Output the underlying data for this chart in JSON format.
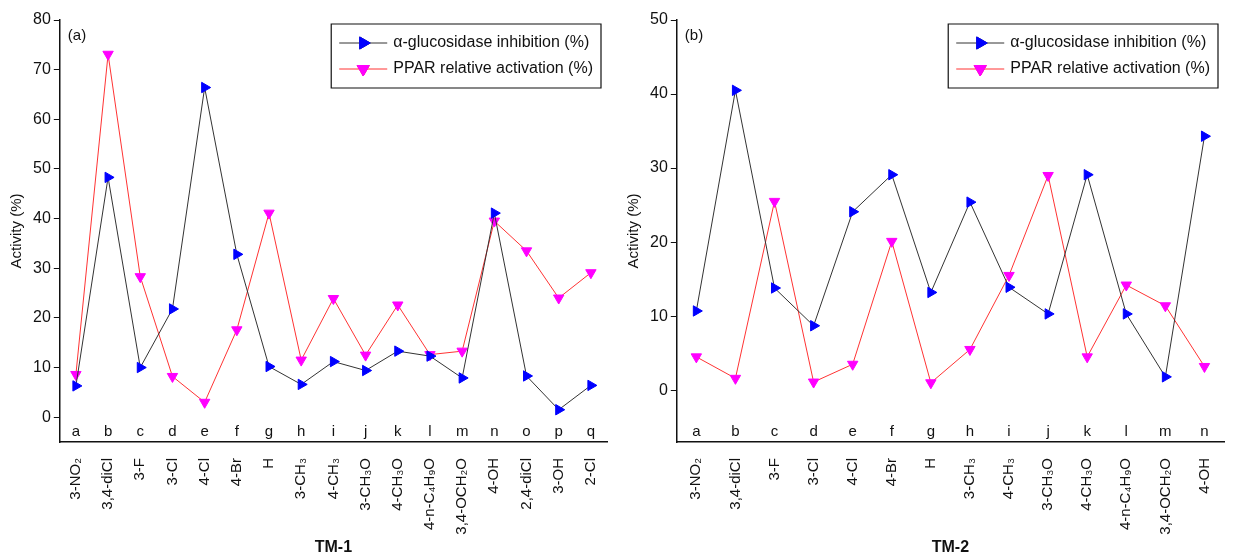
{
  "chart_data": [
    {
      "type": "line",
      "title": "(a)",
      "xlabel": "TM-1",
      "ylabel": "Activity (%)",
      "categories": [
        "3-NO₂",
        "3,4-diCl",
        "3-F",
        "3-Cl",
        "4-Cl",
        "4-Br",
        "H",
        "3-CH₃",
        "4-CH₃",
        "3-CH₃O",
        "4-CH₃O",
        "4-n-C₄H₉O",
        "3,4-OCH₂O",
        "4-OH",
        "2,4-diCl",
        "3-OH",
        "2-Cl"
      ],
      "series": [
        {
          "name": "α-glucosidase inhibition (%)",
          "color": "#333333",
          "colors": [
            "#0000ff",
            "#0000ff",
            "#0000ff",
            "#0000ff",
            "#0000ff",
            "#0000ff",
            "#0000ff",
            "#0000ff",
            "#0000ff",
            "#0000ff",
            "#0000ff",
            "#0000ff",
            "#0000ff",
            "#0000ff",
            "#0000ff",
            "#0000ff",
            "#0000ff"
          ],
          "values": [
            6.3,
            48.3,
            10,
            21.8,
            66.4,
            32.8,
            10.2,
            6.6,
            11.2,
            9.4,
            13.3,
            12.3,
            7.9,
            41.1,
            8.3,
            1.5,
            6.4
          ]
        },
        {
          "name": "PPAR relative activation (%)",
          "color": "#ff3333",
          "colors": [
            "#ff00ff",
            "#ff00ff",
            "#ff00ff",
            "#ff00ff",
            "#ff00ff",
            "#ff00ff",
            "#ff00ff",
            "#ff00ff",
            "#ff00ff",
            "#ff00ff",
            "#ff00ff",
            "#ff00ff",
            "#ff00ff",
            "#ff00ff",
            "#ff00ff",
            "#ff00ff",
            "#ff00ff"
          ],
          "values": [
            8.6,
            73.1,
            28.3,
            8.2,
            3.0,
            17.6,
            41.1,
            11.5,
            23.9,
            12.5,
            22.6,
            12.6,
            13.3,
            39.5,
            33.5,
            24.0,
            29.1
          ]
        }
      ],
      "ylim": [
        -5,
        80
      ],
      "yticks": [
        0,
        10,
        20,
        30,
        40,
        50,
        60,
        70,
        80
      ],
      "grid": false,
      "legend": "top right",
      "marker": "triangle",
      "line_style": "solid",
      "annotations": [
        "a",
        "b",
        "c",
        "d",
        "e",
        "f",
        "g",
        "h",
        "i",
        "j",
        "k",
        "l",
        "m",
        "n",
        "o",
        "p",
        "q"
      ]
    },
    {
      "type": "line",
      "title": "(b)",
      "xlabel": "TM-2",
      "ylabel": "Activity (%)",
      "categories": [
        "3-NO₂",
        "3,4-diCl",
        "3-F",
        "3-Cl",
        "4-Cl",
        "4-Br",
        "H",
        "3-CH₃",
        "4-CH₃",
        "3-CH₃O",
        "4-CH₃O",
        "4-n-C₄H₉O",
        "3,4-OCH₂O",
        "4-OH"
      ],
      "series": [
        {
          "name": "α-glucosidase inhibition (%)",
          "color": "#333333",
          "colors": [
            "#0000ff",
            "#0000ff",
            "#0000ff",
            "#0000ff",
            "#0000ff",
            "#0000ff",
            "#0000ff",
            "#0000ff",
            "#0000ff",
            "#0000ff",
            "#0000ff",
            "#0000ff",
            "#0000ff",
            "#0000ff"
          ],
          "values": [
            10.7,
            40.5,
            13.8,
            8.7,
            24.1,
            29.1,
            13.2,
            25.4,
            13.9,
            10.3,
            29.1,
            10.3,
            1.8,
            34.3
          ]
        },
        {
          "name": "PPAR relative activation (%)",
          "color": "#ff3333",
          "colors": [
            "#ff00ff",
            "#ff00ff",
            "#ff00ff",
            "#ff00ff",
            "#ff00ff",
            "#ff00ff",
            "#ff00ff",
            "#ff00ff",
            "#ff00ff",
            "#ff00ff",
            "#ff00ff",
            "#ff00ff",
            "#ff00ff",
            "#ff00ff"
          ],
          "values": [
            4.5,
            1.6,
            25.5,
            1.1,
            3.5,
            20.1,
            1.0,
            5.5,
            15.5,
            29.0,
            4.5,
            14.2,
            11.4,
            3.2
          ]
        }
      ],
      "ylim": [
        -7,
        50
      ],
      "yticks": [
        0,
        10,
        20,
        30,
        40,
        50
      ],
      "grid": false,
      "legend": "top right",
      "marker": "triangle",
      "line_style": "solid",
      "annotations": [
        "a",
        "b",
        "c",
        "d",
        "e",
        "f",
        "g",
        "h",
        "i",
        "j",
        "k",
        "l",
        "m",
        "n"
      ]
    }
  ]
}
